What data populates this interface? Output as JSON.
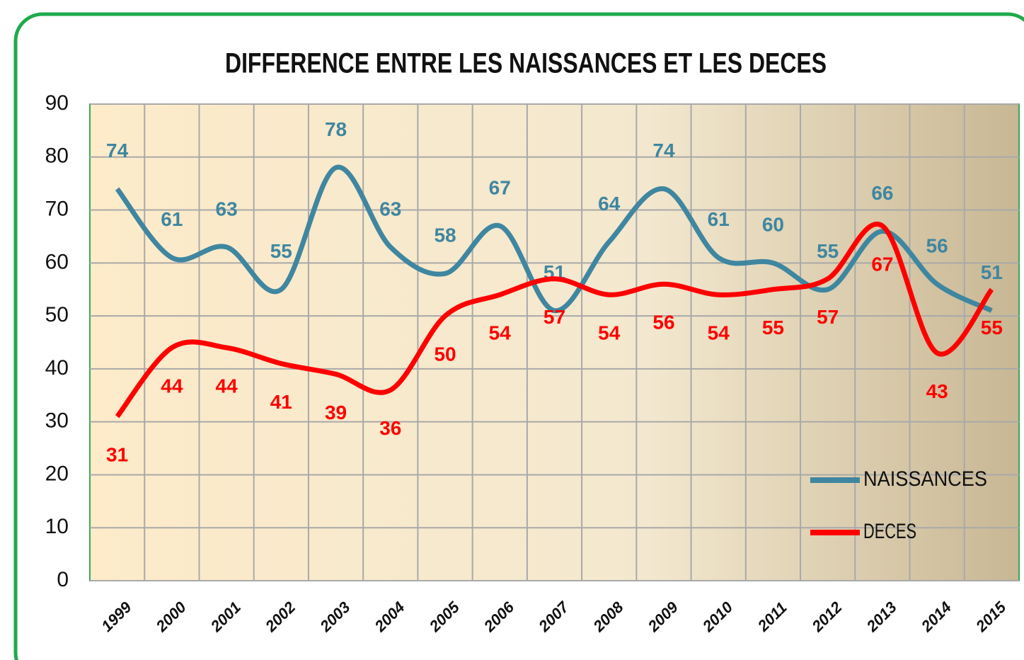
{
  "chart_data": {
    "type": "line",
    "title": "DIFFERENCE ENTRE LES NAISSANCES ET LES DECES",
    "categories": [
      "1999",
      "2000",
      "2001",
      "2002",
      "2003",
      "2004",
      "2005",
      "2006",
      "2007",
      "2008",
      "2009",
      "2010",
      "2011",
      "2012",
      "2013",
      "2014",
      "2015"
    ],
    "series": [
      {
        "name": "NAISSANCES",
        "color": "#3f86a0",
        "values": [
          74,
          61,
          63,
          55,
          78,
          63,
          58,
          67,
          51,
          64,
          74,
          61,
          60,
          55,
          66,
          56,
          51
        ]
      },
      {
        "name": "DECES",
        "color": "#ff0000",
        "values": [
          31,
          44,
          44,
          41,
          39,
          36,
          50,
          54,
          57,
          54,
          56,
          54,
          55,
          57,
          67,
          43,
          55
        ]
      }
    ],
    "ylim": [
      0,
      90
    ],
    "yticks": [
      0,
      10,
      20,
      30,
      40,
      50,
      60,
      70,
      80,
      90
    ],
    "grid": true,
    "legend": "bottom-right"
  }
}
